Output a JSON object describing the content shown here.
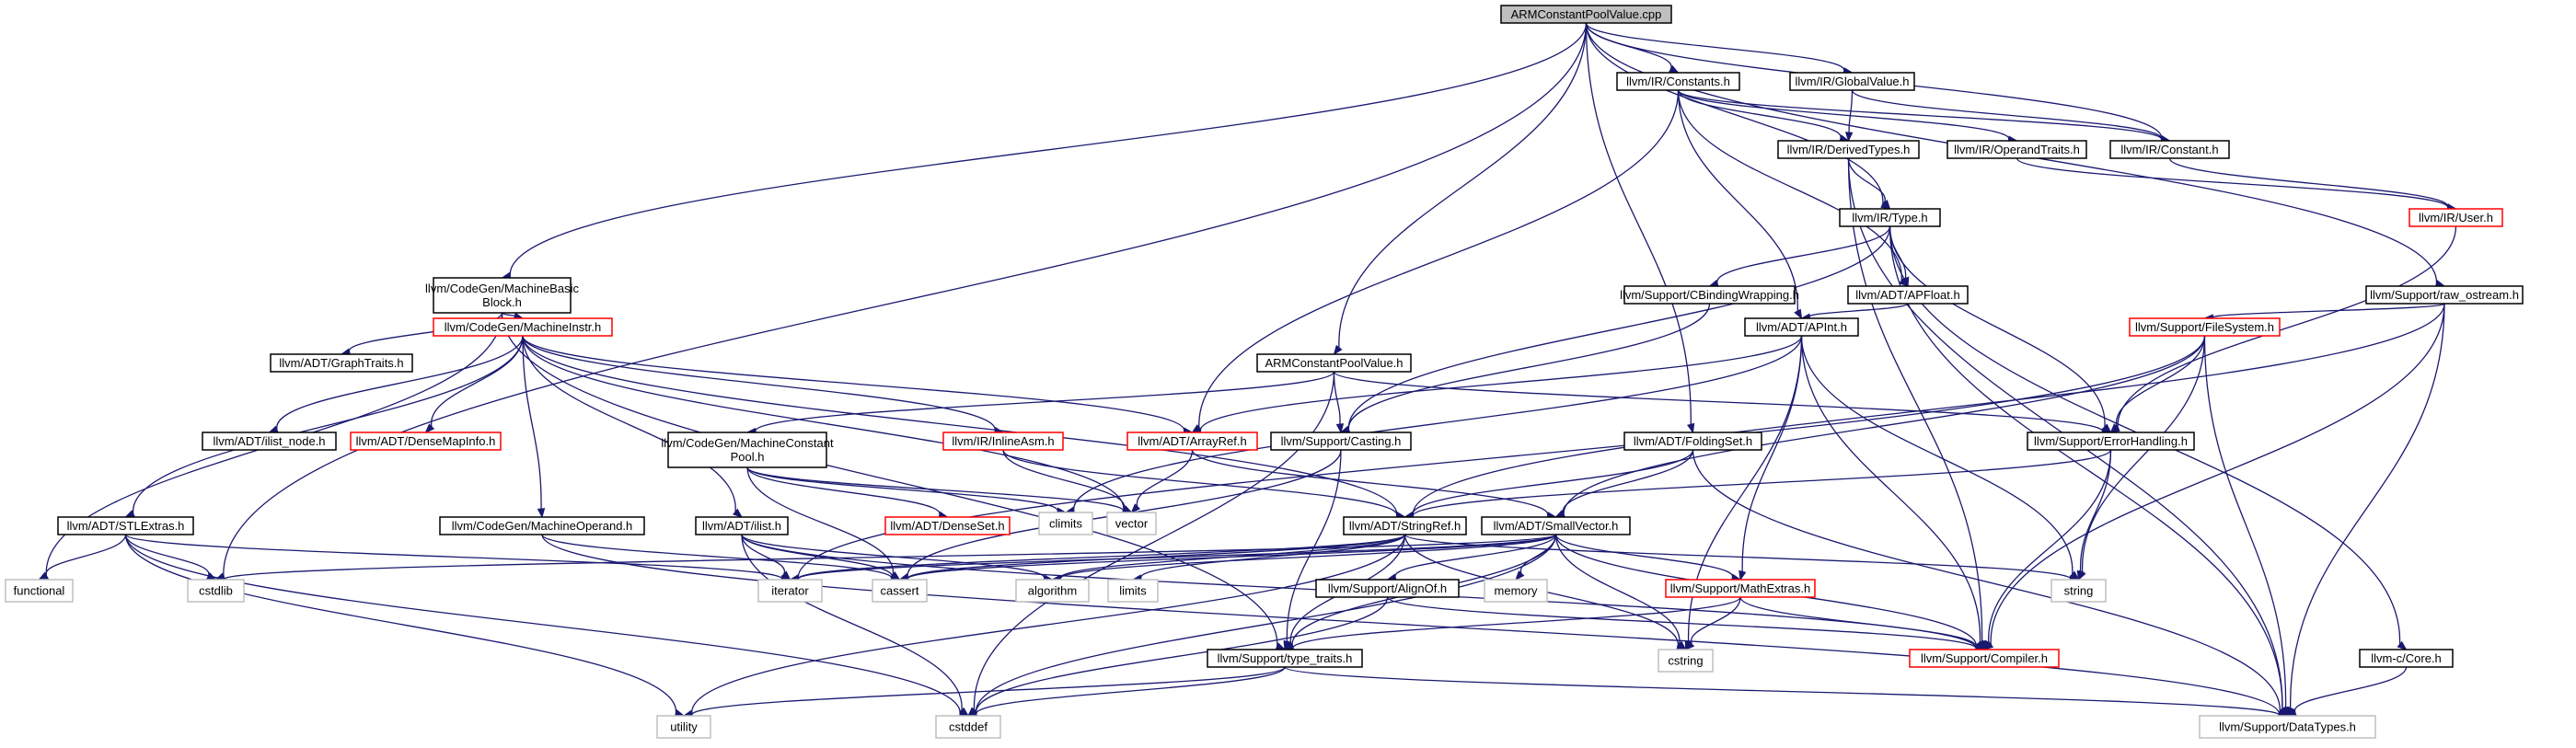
{
  "colors": {
    "edge": "#191970",
    "root_fill": "#bfbfbf",
    "normal_stroke": "#000000",
    "truncated_stroke": "#ff0000",
    "system_stroke": "#bfbfbf",
    "background": "#ffffff"
  },
  "nodes": [
    {
      "id": "root",
      "label": [
        "ARMConstantPoolValue.cpp"
      ],
      "kind": "root"
    },
    {
      "id": "ir_constants",
      "label": [
        "llvm/IR/Constants.h"
      ],
      "kind": "normal"
    },
    {
      "id": "ir_globalvalue",
      "label": [
        "llvm/IR/GlobalValue.h"
      ],
      "kind": "normal"
    },
    {
      "id": "ir_derivedtypes",
      "label": [
        "llvm/IR/DerivedTypes.h"
      ],
      "kind": "normal"
    },
    {
      "id": "ir_operandtraits",
      "label": [
        "llvm/IR/OperandTraits.h"
      ],
      "kind": "normal"
    },
    {
      "id": "ir_constant",
      "label": [
        "llvm/IR/Constant.h"
      ],
      "kind": "normal"
    },
    {
      "id": "ir_user",
      "label": [
        "llvm/IR/User.h"
      ],
      "kind": "truncated"
    },
    {
      "id": "ir_type",
      "label": [
        "llvm/IR/Type.h"
      ],
      "kind": "normal"
    },
    {
      "id": "cg_mbb",
      "label": [
        "llvm/CodeGen/MachineBasic",
        "Block.h"
      ],
      "kind": "normal"
    },
    {
      "id": "support_cbinding",
      "label": [
        "llvm/Support/CBindingWrapping.h"
      ],
      "kind": "normal"
    },
    {
      "id": "adt_apfloat",
      "label": [
        "llvm/ADT/APFloat.h"
      ],
      "kind": "normal"
    },
    {
      "id": "raw_ostream",
      "label": [
        "llvm/Support/raw_ostream.h"
      ],
      "kind": "normal"
    },
    {
      "id": "adt_graphtraits",
      "label": [
        "llvm/ADT/GraphTraits.h"
      ],
      "kind": "normal"
    },
    {
      "id": "cg_machineinstr",
      "label": [
        "llvm/CodeGen/MachineInstr.h"
      ],
      "kind": "truncated"
    },
    {
      "id": "arm_cpv_h",
      "label": [
        "ARMConstantPoolValue.h"
      ],
      "kind": "normal"
    },
    {
      "id": "adt_apint",
      "label": [
        "llvm/ADT/APInt.h"
      ],
      "kind": "normal"
    },
    {
      "id": "support_filesystem",
      "label": [
        "llvm/Support/FileSystem.h"
      ],
      "kind": "truncated"
    },
    {
      "id": "adt_ilist_node",
      "label": [
        "llvm/ADT/ilist_node.h"
      ],
      "kind": "normal"
    },
    {
      "id": "adt_densemapinfo",
      "label": [
        "llvm/ADT/DenseMapInfo.h"
      ],
      "kind": "truncated"
    },
    {
      "id": "cg_mcp",
      "label": [
        "llvm/CodeGen/MachineConstant",
        "Pool.h"
      ],
      "kind": "normal"
    },
    {
      "id": "ir_inlineasm",
      "label": [
        "llvm/IR/InlineAsm.h"
      ],
      "kind": "truncated"
    },
    {
      "id": "adt_arrayref",
      "label": [
        "llvm/ADT/ArrayRef.h"
      ],
      "kind": "truncated"
    },
    {
      "id": "support_casting",
      "label": [
        "llvm/Support/Casting.h"
      ],
      "kind": "normal"
    },
    {
      "id": "adt_foldingset",
      "label": [
        "llvm/ADT/FoldingSet.h"
      ],
      "kind": "normal"
    },
    {
      "id": "support_errorhandling",
      "label": [
        "llvm/Support/ErrorHandling.h"
      ],
      "kind": "normal"
    },
    {
      "id": "adt_stlextras",
      "label": [
        "llvm/ADT/STLExtras.h"
      ],
      "kind": "normal"
    },
    {
      "id": "cg_machineoperand",
      "label": [
        "llvm/CodeGen/MachineOperand.h"
      ],
      "kind": "normal"
    },
    {
      "id": "adt_ilist",
      "label": [
        "llvm/ADT/ilist.h"
      ],
      "kind": "normal"
    },
    {
      "id": "adt_denseset",
      "label": [
        "llvm/ADT/DenseSet.h"
      ],
      "kind": "truncated"
    },
    {
      "id": "climits",
      "label": [
        "climits"
      ],
      "kind": "system"
    },
    {
      "id": "vector",
      "label": [
        "vector"
      ],
      "kind": "system"
    },
    {
      "id": "adt_stringref",
      "label": [
        "llvm/ADT/StringRef.h"
      ],
      "kind": "normal"
    },
    {
      "id": "adt_smallvector",
      "label": [
        "llvm/ADT/SmallVector.h"
      ],
      "kind": "normal"
    },
    {
      "id": "functional",
      "label": [
        "functional"
      ],
      "kind": "system"
    },
    {
      "id": "cstdlib",
      "label": [
        "cstdlib"
      ],
      "kind": "system"
    },
    {
      "id": "iterator",
      "label": [
        "iterator"
      ],
      "kind": "system"
    },
    {
      "id": "cassert",
      "label": [
        "cassert"
      ],
      "kind": "system"
    },
    {
      "id": "algorithm",
      "label": [
        "algorithm"
      ],
      "kind": "system"
    },
    {
      "id": "limits",
      "label": [
        "limits"
      ],
      "kind": "system"
    },
    {
      "id": "memory",
      "label": [
        "memory"
      ],
      "kind": "system"
    },
    {
      "id": "support_mathextras",
      "label": [
        "llvm/Support/MathExtras.h"
      ],
      "kind": "truncated"
    },
    {
      "id": "string",
      "label": [
        "string"
      ],
      "kind": "system"
    },
    {
      "id": "support_alignof",
      "label": [
        "llvm/Support/AlignOf.h"
      ],
      "kind": "normal"
    },
    {
      "id": "support_typetraits",
      "label": [
        "llvm/Support/type_traits.h"
      ],
      "kind": "normal"
    },
    {
      "id": "cstring",
      "label": [
        "cstring"
      ],
      "kind": "system"
    },
    {
      "id": "support_compiler",
      "label": [
        "llvm/Support/Compiler.h"
      ],
      "kind": "truncated"
    },
    {
      "id": "llvmc_core",
      "label": [
        "llvm-c/Core.h"
      ],
      "kind": "normal"
    },
    {
      "id": "utility",
      "label": [
        "utility"
      ],
      "kind": "system"
    },
    {
      "id": "cstddef",
      "label": [
        "cstddef"
      ],
      "kind": "system"
    },
    {
      "id": "support_datatypes",
      "label": [
        "llvm/Support/DataTypes.h"
      ],
      "kind": "system"
    }
  ],
  "edges": [
    [
      "root",
      "ir_constants"
    ],
    [
      "root",
      "ir_globalvalue"
    ],
    [
      "root",
      "ir_constant"
    ],
    [
      "root",
      "ir_type"
    ],
    [
      "root",
      "cg_mbb"
    ],
    [
      "root",
      "arm_cpv_h"
    ],
    [
      "root",
      "adt_foldingset"
    ],
    [
      "root",
      "raw_ostream"
    ],
    [
      "root",
      "cstdlib"
    ],
    [
      "ir_constants",
      "ir_derivedtypes"
    ],
    [
      "ir_constants",
      "ir_operandtraits"
    ],
    [
      "ir_constants",
      "ir_constant"
    ],
    [
      "ir_constants",
      "adt_apfloat"
    ],
    [
      "ir_constants",
      "adt_apint"
    ],
    [
      "ir_constants",
      "adt_arrayref"
    ],
    [
      "ir_globalvalue",
      "ir_derivedtypes"
    ],
    [
      "ir_globalvalue",
      "ir_constant"
    ],
    [
      "ir_derivedtypes",
      "ir_type"
    ],
    [
      "ir_derivedtypes",
      "support_datatypes"
    ],
    [
      "ir_derivedtypes",
      "support_compiler"
    ],
    [
      "ir_operandtraits",
      "ir_user"
    ],
    [
      "ir_constant",
      "ir_user"
    ],
    [
      "ir_user",
      "support_errorhandling"
    ],
    [
      "ir_type",
      "support_cbinding"
    ],
    [
      "ir_type",
      "adt_apfloat"
    ],
    [
      "ir_type",
      "support_casting"
    ],
    [
      "ir_type",
      "support_errorhandling"
    ],
    [
      "ir_type",
      "support_datatypes"
    ],
    [
      "ir_type",
      "llvmc_core"
    ],
    [
      "support_cbinding",
      "support_casting"
    ],
    [
      "adt_apfloat",
      "adt_apint"
    ],
    [
      "adt_apint",
      "adt_arrayref"
    ],
    [
      "adt_apint",
      "support_mathextras"
    ],
    [
      "adt_apint",
      "climits"
    ],
    [
      "adt_apint",
      "cstring"
    ],
    [
      "adt_apint",
      "string"
    ],
    [
      "adt_apint",
      "support_compiler"
    ],
    [
      "cg_mbb",
      "adt_graphtraits"
    ],
    [
      "cg_mbb",
      "cg_machineinstr"
    ],
    [
      "cg_mbb",
      "functional"
    ],
    [
      "cg_mbb",
      "support_typetraits"
    ],
    [
      "cg_machineinstr",
      "adt_ilist_node"
    ],
    [
      "cg_machineinstr",
      "adt_densemapinfo"
    ],
    [
      "cg_machineinstr",
      "ir_inlineasm"
    ],
    [
      "cg_machineinstr",
      "adt_arrayref"
    ],
    [
      "cg_machineinstr",
      "cg_machineoperand"
    ],
    [
      "cg_machineinstr",
      "adt_stlextras"
    ],
    [
      "cg_machineinstr",
      "adt_ilist"
    ],
    [
      "cg_machineinstr",
      "vector"
    ],
    [
      "cg_machineinstr",
      "adt_stringref"
    ],
    [
      "arm_cpv_h",
      "cg_mcp"
    ],
    [
      "arm_cpv_h",
      "support_casting"
    ],
    [
      "arm_cpv_h",
      "support_errorhandling"
    ],
    [
      "arm_cpv_h",
      "cstddef"
    ],
    [
      "raw_ostream",
      "support_filesystem"
    ],
    [
      "raw_ostream",
      "adt_stringref"
    ],
    [
      "raw_ostream",
      "support_compiler"
    ],
    [
      "raw_ostream",
      "support_datatypes"
    ],
    [
      "support_filesystem",
      "support_errorhandling"
    ],
    [
      "support_filesystem",
      "adt_smallvector"
    ],
    [
      "support_filesystem",
      "support_datatypes"
    ],
    [
      "support_filesystem",
      "string"
    ],
    [
      "support_filesystem",
      "iterator"
    ],
    [
      "cg_mcp",
      "adt_denseset"
    ],
    [
      "cg_mcp",
      "cassert"
    ],
    [
      "cg_mcp",
      "climits"
    ],
    [
      "cg_mcp",
      "vector"
    ],
    [
      "ir_inlineasm",
      "adt_stringref"
    ],
    [
      "ir_inlineasm",
      "vector"
    ],
    [
      "adt_arrayref",
      "adt_smallvector"
    ],
    [
      "adt_arrayref",
      "vector"
    ],
    [
      "support_casting",
      "support_typetraits"
    ],
    [
      "support_casting",
      "cassert"
    ],
    [
      "adt_foldingset",
      "adt_smallvector"
    ],
    [
      "adt_foldingset",
      "adt_stringref"
    ],
    [
      "adt_foldingset",
      "support_datatypes"
    ],
    [
      "support_errorhandling",
      "adt_stringref"
    ],
    [
      "support_errorhandling",
      "support_compiler"
    ],
    [
      "support_errorhandling",
      "string"
    ],
    [
      "adt_stlextras",
      "functional"
    ],
    [
      "adt_stlextras",
      "cstdlib"
    ],
    [
      "adt_stlextras",
      "iterator"
    ],
    [
      "adt_stlextras",
      "utility"
    ],
    [
      "adt_stlextras",
      "cstddef"
    ],
    [
      "cg_machineoperand",
      "cassert"
    ],
    [
      "cg_machineoperand",
      "support_datatypes"
    ],
    [
      "adt_ilist",
      "iterator"
    ],
    [
      "adt_ilist",
      "cassert"
    ],
    [
      "adt_ilist",
      "algorithm"
    ],
    [
      "adt_ilist",
      "cstddef"
    ],
    [
      "adt_ilist",
      "support_compiler"
    ],
    [
      "adt_stringref",
      "iterator"
    ],
    [
      "adt_stringref",
      "cassert"
    ],
    [
      "adt_stringref",
      "algorithm"
    ],
    [
      "adt_stringref",
      "limits"
    ],
    [
      "adt_stringref",
      "string"
    ],
    [
      "adt_stringref",
      "utility"
    ],
    [
      "adt_stringref",
      "cstring"
    ],
    [
      "adt_stringref",
      "support_typetraits"
    ],
    [
      "adt_smallvector",
      "support_alignof"
    ],
    [
      "adt_smallvector",
      "support_mathextras"
    ],
    [
      "adt_smallvector",
      "memory"
    ],
    [
      "adt_smallvector",
      "cstring"
    ],
    [
      "adt_smallvector",
      "support_typetraits"
    ],
    [
      "adt_smallvector",
      "support_compiler"
    ],
    [
      "adt_smallvector",
      "cstddef"
    ],
    [
      "adt_smallvector",
      "cstdlib"
    ],
    [
      "adt_smallvector",
      "iterator"
    ],
    [
      "adt_smallvector",
      "cassert"
    ],
    [
      "adt_smallvector",
      "algorithm"
    ],
    [
      "support_mathextras",
      "support_typetraits"
    ],
    [
      "support_mathextras",
      "cstring"
    ],
    [
      "support_mathextras",
      "support_compiler"
    ],
    [
      "support_alignof",
      "cstddef"
    ],
    [
      "support_alignof",
      "support_compiler"
    ],
    [
      "support_typetraits",
      "utility"
    ],
    [
      "support_typetraits",
      "cstddef"
    ],
    [
      "support_typetraits",
      "support_datatypes"
    ],
    [
      "llvmc_core",
      "support_datatypes"
    ]
  ]
}
